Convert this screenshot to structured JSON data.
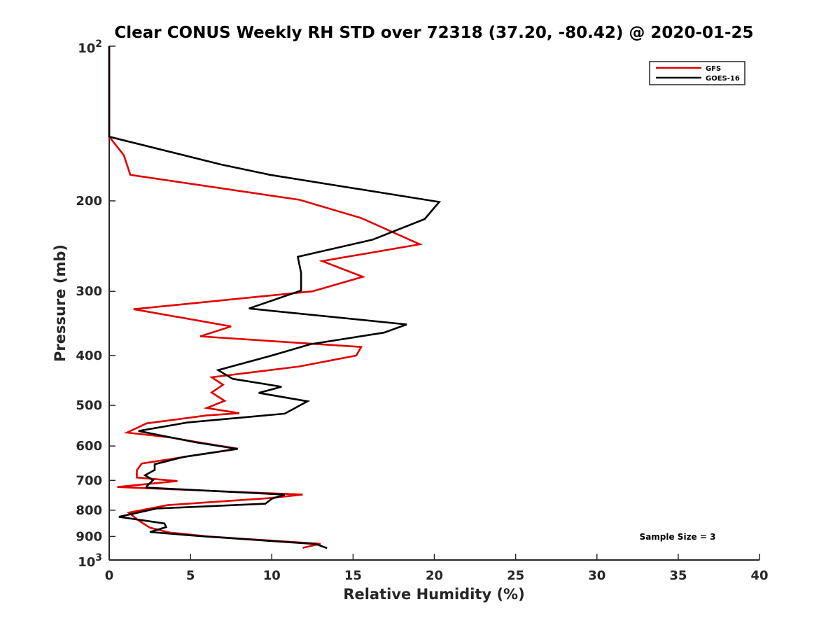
{
  "chart_data": {
    "type": "line",
    "title": "Clear CONUS Weekly RH STD over 72318 (37.20, -80.42) @ 2020-01-25",
    "xlabel": "Relative Humidity (%)",
    "ylabel": "Pressure (mb)",
    "xlim": [
      0,
      40
    ],
    "ylim": [
      100,
      1000
    ],
    "yscale": "log",
    "y_reversed": true,
    "x_ticks": [
      "0",
      "5",
      "10",
      "15",
      "20",
      "25",
      "30",
      "35",
      "40"
    ],
    "y_ticks": [
      {
        "value": 200,
        "label": "200"
      },
      {
        "value": 300,
        "label": "300"
      },
      {
        "value": 400,
        "label": "400"
      },
      {
        "value": 500,
        "label": "500"
      },
      {
        "value": 600,
        "label": "600"
      },
      {
        "value": 700,
        "label": "700"
      },
      {
        "value": 800,
        "label": "800"
      },
      {
        "value": 900,
        "label": "900"
      }
    ],
    "y_power_ticks": [
      {
        "value": 100,
        "base": "10",
        "exp": "2"
      },
      {
        "value": 1000,
        "base": "10",
        "exp": "3"
      }
    ],
    "grid": false,
    "legend_position": "top-right",
    "annotation": "Sample Size = 3",
    "series": [
      {
        "name": "GFS",
        "color": "#e00000",
        "x": [
          0,
          0,
          0.9,
          1.3,
          11.7,
          15.5,
          19.1,
          13.1,
          15.6,
          12.5,
          1.5,
          7.5,
          5.6,
          15.5,
          15.2,
          11.7,
          6.3,
          7.0,
          6.3,
          7.1,
          6.0,
          8.0,
          6.0,
          2.3,
          1.1,
          3.7,
          5.6,
          7.9,
          2.0,
          1.7,
          1.7,
          4.2,
          0.5,
          11.9,
          9.8,
          3.6,
          1.2,
          1.8,
          2.5,
          3.7,
          6.1,
          13.0,
          11.9
        ],
        "y": [
          100,
          150,
          163,
          178,
          199,
          216,
          243,
          262,
          281,
          300,
          325,
          351,
          367,
          385,
          400,
          420,
          441,
          456,
          472,
          490,
          506,
          518,
          523,
          542,
          565,
          577,
          591,
          607,
          649,
          669,
          691,
          702,
          721,
          746,
          758,
          782,
          809,
          837,
          865,
          884,
          900,
          930,
          947
        ]
      },
      {
        "name": "GOES-16",
        "color": "#000000",
        "x": [
          0,
          0,
          6.9,
          9.9,
          20.3,
          19.4,
          16.2,
          11.6,
          11.8,
          11.8,
          8.6,
          18.3,
          16.9,
          12.4,
          10.0,
          6.7,
          7.6,
          10.6,
          9.2,
          12.2,
          10.8,
          4.8,
          1.8,
          5.3,
          7.9,
          4.6,
          2.8,
          2.8,
          2.2,
          2.7,
          2.3,
          2.3,
          10.8,
          10.0,
          9.6,
          2.9,
          0.6,
          3.4,
          3.5,
          2.5,
          5.5,
          12.7,
          13.4
        ],
        "y": [
          100,
          150,
          170,
          178,
          201,
          217,
          238,
          257,
          276,
          299,
          324,
          348,
          361,
          380,
          400,
          427,
          444,
          460,
          473,
          491,
          519,
          540,
          561,
          590,
          608,
          630,
          651,
          668,
          684,
          699,
          719,
          723,
          746,
          760,
          777,
          794,
          824,
          849,
          863,
          882,
          898,
          931,
          948
        ]
      }
    ]
  }
}
